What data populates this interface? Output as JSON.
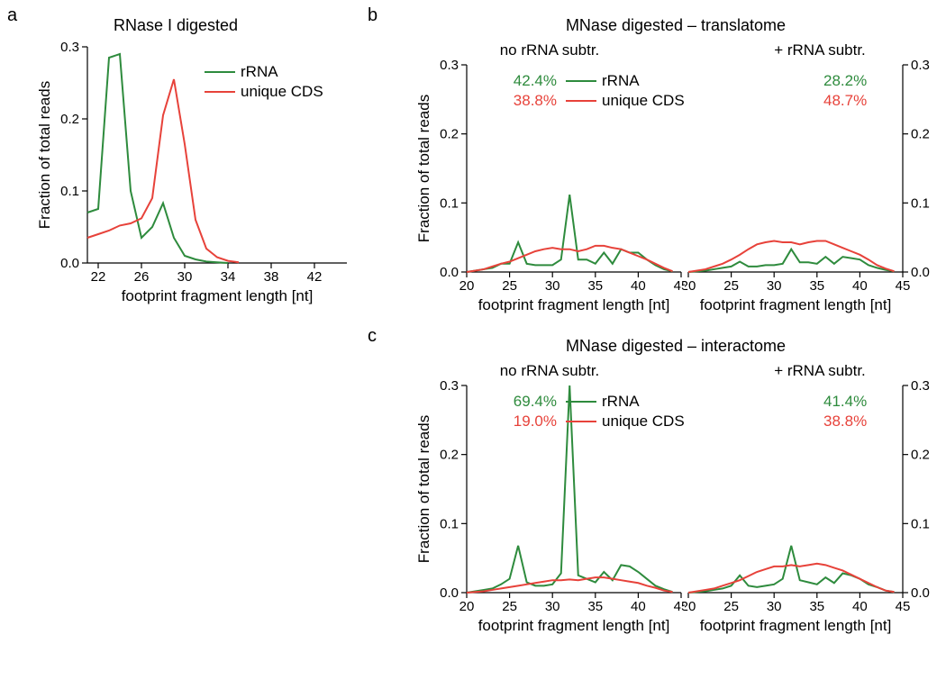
{
  "colors": {
    "rrna": "#2e8b3d",
    "cds": "#e7423a",
    "axis": "#000000",
    "background": "#ffffff"
  },
  "typography": {
    "panel_label_fontsize": 20,
    "title_fontsize": 18,
    "subtitle_fontsize": 17,
    "tick_fontsize": 15,
    "axis_title_fontsize": 17,
    "legend_fontsize": 17
  },
  "panel_labels": {
    "a": "a",
    "b": "b",
    "c": "c"
  },
  "panel_a": {
    "title": "RNase I digested",
    "xlabel": "footprint fragment length [nt]",
    "ylabel": "Fraction of total reads",
    "xlim": [
      21,
      45
    ],
    "x_ticks": [
      22,
      26,
      30,
      34,
      38,
      42
    ],
    "ylim": [
      0,
      0.3
    ],
    "y_ticks": [
      0.0,
      0.1,
      0.2,
      0.3
    ],
    "line_width": 2,
    "legend": {
      "items": [
        {
          "label": "rRNA",
          "color_key": "rrna"
        },
        {
          "label": "unique CDS",
          "color_key": "cds"
        }
      ]
    },
    "series": {
      "rrna": {
        "x": [
          21,
          22,
          23,
          24,
          25,
          26,
          27,
          28,
          29,
          30,
          31,
          32,
          33,
          34
        ],
        "y": [
          0.07,
          0.075,
          0.285,
          0.29,
          0.1,
          0.035,
          0.05,
          0.083,
          0.035,
          0.01,
          0.005,
          0.002,
          0.001,
          0.0
        ]
      },
      "cds": {
        "x": [
          21,
          22,
          23,
          24,
          25,
          26,
          27,
          28,
          29,
          30,
          31,
          32,
          33,
          34,
          35
        ],
        "y": [
          0.035,
          0.04,
          0.045,
          0.052,
          0.055,
          0.062,
          0.09,
          0.205,
          0.255,
          0.165,
          0.06,
          0.02,
          0.008,
          0.003,
          0.001
        ]
      }
    }
  },
  "panel_b": {
    "title": "MNase digested – translatome",
    "sub_left": "no rRNA subtr.",
    "sub_right": "+ rRNA subtr.",
    "xlabel": "footprint fragment length [nt]",
    "ylabel": "Fraction of total reads",
    "xlim": [
      20,
      45
    ],
    "x_ticks": [
      20,
      25,
      30,
      35,
      40,
      45
    ],
    "ylim": [
      0,
      0.3
    ],
    "y_ticks": [
      0.0,
      0.1,
      0.2,
      0.3
    ],
    "line_width": 2,
    "legend": {
      "items": [
        {
          "label": "rRNA",
          "color_key": "rrna"
        },
        {
          "label": "unique CDS",
          "color_key": "cds"
        }
      ]
    },
    "percent_left": {
      "rrna": "42.4%",
      "cds": "38.8%"
    },
    "percent_right": {
      "rrna": "28.2%",
      "cds": "48.7%"
    },
    "left": {
      "rrna": {
        "x": [
          20,
          21,
          22,
          23,
          24,
          25,
          26,
          27,
          28,
          29,
          30,
          31,
          32,
          33,
          34,
          35,
          36,
          37,
          38,
          39,
          40,
          41,
          42,
          43,
          44
        ],
        "y": [
          0.0,
          0.002,
          0.004,
          0.006,
          0.012,
          0.012,
          0.043,
          0.012,
          0.01,
          0.01,
          0.01,
          0.018,
          0.112,
          0.018,
          0.018,
          0.012,
          0.028,
          0.012,
          0.033,
          0.028,
          0.028,
          0.018,
          0.01,
          0.004,
          0.001
        ]
      },
      "cds": {
        "x": [
          20,
          21,
          22,
          23,
          24,
          25,
          26,
          27,
          28,
          29,
          30,
          31,
          32,
          33,
          34,
          35,
          36,
          37,
          38,
          39,
          40,
          41,
          42,
          43,
          44
        ],
        "y": [
          0.0,
          0.002,
          0.004,
          0.008,
          0.012,
          0.015,
          0.02,
          0.025,
          0.03,
          0.033,
          0.035,
          0.033,
          0.033,
          0.03,
          0.033,
          0.038,
          0.038,
          0.035,
          0.033,
          0.028,
          0.023,
          0.018,
          0.012,
          0.006,
          0.001
        ]
      }
    },
    "right": {
      "rrna": {
        "x": [
          20,
          21,
          22,
          23,
          24,
          25,
          26,
          27,
          28,
          29,
          30,
          31,
          32,
          33,
          34,
          35,
          36,
          37,
          38,
          39,
          40,
          41,
          42,
          43,
          44
        ],
        "y": [
          0.0,
          0.001,
          0.002,
          0.004,
          0.006,
          0.008,
          0.015,
          0.008,
          0.008,
          0.01,
          0.01,
          0.012,
          0.033,
          0.014,
          0.014,
          0.012,
          0.022,
          0.012,
          0.022,
          0.02,
          0.018,
          0.01,
          0.006,
          0.003,
          0.001
        ]
      },
      "cds": {
        "x": [
          20,
          21,
          22,
          23,
          24,
          25,
          26,
          27,
          28,
          29,
          30,
          31,
          32,
          33,
          34,
          35,
          36,
          37,
          38,
          39,
          40,
          41,
          42,
          43,
          44
        ],
        "y": [
          0.0,
          0.002,
          0.004,
          0.008,
          0.012,
          0.018,
          0.025,
          0.033,
          0.04,
          0.043,
          0.045,
          0.043,
          0.043,
          0.04,
          0.043,
          0.045,
          0.045,
          0.04,
          0.035,
          0.03,
          0.025,
          0.018,
          0.01,
          0.005,
          0.001
        ]
      }
    }
  },
  "panel_c": {
    "title": "MNase digested – interactome",
    "sub_left": "no rRNA subtr.",
    "sub_right": "+ rRNA subtr.",
    "xlabel": "footprint fragment length [nt]",
    "ylabel": "Fraction of total reads",
    "xlim": [
      20,
      45
    ],
    "x_ticks": [
      20,
      25,
      30,
      35,
      40,
      45
    ],
    "ylim": [
      0,
      0.3
    ],
    "y_ticks": [
      0.0,
      0.1,
      0.2,
      0.3
    ],
    "line_width": 2,
    "legend": {
      "items": [
        {
          "label": "rRNA",
          "color_key": "rrna"
        },
        {
          "label": "unique CDS",
          "color_key": "cds"
        }
      ]
    },
    "percent_left": {
      "rrna": "69.4%",
      "cds": "19.0%"
    },
    "percent_right": {
      "rrna": "41.4%",
      "cds": "38.8%"
    },
    "left": {
      "rrna": {
        "x": [
          20,
          21,
          22,
          23,
          24,
          25,
          26,
          27,
          28,
          29,
          30,
          31,
          32,
          33,
          34,
          35,
          36,
          37,
          38,
          39,
          40,
          41,
          42,
          43,
          44
        ],
        "y": [
          0.0,
          0.002,
          0.004,
          0.006,
          0.012,
          0.02,
          0.068,
          0.015,
          0.01,
          0.01,
          0.012,
          0.028,
          0.3,
          0.025,
          0.02,
          0.015,
          0.03,
          0.018,
          0.04,
          0.038,
          0.03,
          0.02,
          0.01,
          0.005,
          0.001
        ]
      },
      "cds": {
        "x": [
          20,
          21,
          22,
          23,
          24,
          25,
          26,
          27,
          28,
          29,
          30,
          31,
          32,
          33,
          34,
          35,
          36,
          37,
          38,
          39,
          40,
          41,
          42,
          43,
          44
        ],
        "y": [
          0.0,
          0.001,
          0.002,
          0.004,
          0.006,
          0.008,
          0.01,
          0.012,
          0.014,
          0.016,
          0.018,
          0.018,
          0.019,
          0.018,
          0.02,
          0.022,
          0.022,
          0.02,
          0.018,
          0.016,
          0.014,
          0.01,
          0.007,
          0.003,
          0.001
        ]
      }
    },
    "right": {
      "rrna": {
        "x": [
          20,
          21,
          22,
          23,
          24,
          25,
          26,
          27,
          28,
          29,
          30,
          31,
          32,
          33,
          34,
          35,
          36,
          37,
          38,
          39,
          40,
          41,
          42,
          43,
          44
        ],
        "y": [
          0.0,
          0.001,
          0.002,
          0.004,
          0.006,
          0.01,
          0.025,
          0.01,
          0.008,
          0.01,
          0.012,
          0.02,
          0.068,
          0.018,
          0.015,
          0.012,
          0.022,
          0.014,
          0.028,
          0.025,
          0.02,
          0.012,
          0.008,
          0.003,
          0.001
        ]
      },
      "cds": {
        "x": [
          20,
          21,
          22,
          23,
          24,
          25,
          26,
          27,
          28,
          29,
          30,
          31,
          32,
          33,
          34,
          35,
          36,
          37,
          38,
          39,
          40,
          41,
          42,
          43,
          44
        ],
        "y": [
          0.0,
          0.002,
          0.004,
          0.006,
          0.01,
          0.014,
          0.018,
          0.024,
          0.03,
          0.034,
          0.038,
          0.038,
          0.04,
          0.038,
          0.04,
          0.042,
          0.04,
          0.036,
          0.032,
          0.026,
          0.02,
          0.014,
          0.008,
          0.003,
          0.001
        ]
      }
    }
  }
}
